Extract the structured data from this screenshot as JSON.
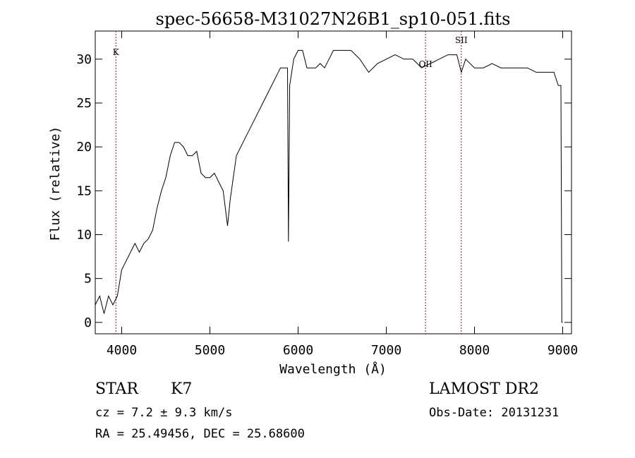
{
  "chart_data": {
    "type": "line",
    "title": "spec-56658-M31027N26B1_sp10-051.fits",
    "xlabel": "Wavelength (Å)",
    "ylabel": "Flux (relative)",
    "xlim": [
      3700,
      9100
    ],
    "ylim": [
      -1.3,
      33.2
    ],
    "x_ticks": [
      4000,
      5000,
      6000,
      7000,
      8000,
      9000
    ],
    "y_ticks": [
      0,
      5,
      10,
      15,
      20,
      25,
      30
    ],
    "grid": false,
    "line_color": "#000000",
    "marker_color": "#8b1a1a",
    "spectrum_points": [
      [
        3700,
        2
      ],
      [
        3750,
        3
      ],
      [
        3800,
        1
      ],
      [
        3850,
        3
      ],
      [
        3900,
        2
      ],
      [
        3950,
        3
      ],
      [
        4000,
        6
      ],
      [
        4050,
        7
      ],
      [
        4100,
        8
      ],
      [
        4150,
        9
      ],
      [
        4200,
        8
      ],
      [
        4250,
        9
      ],
      [
        4300,
        9.5
      ],
      [
        4350,
        10.5
      ],
      [
        4400,
        13
      ],
      [
        4450,
        15
      ],
      [
        4500,
        16.5
      ],
      [
        4550,
        19
      ],
      [
        4600,
        20.5
      ],
      [
        4650,
        20.5
      ],
      [
        4700,
        20
      ],
      [
        4750,
        19
      ],
      [
        4800,
        19
      ],
      [
        4850,
        19.5
      ],
      [
        4900,
        17
      ],
      [
        4950,
        16.5
      ],
      [
        5000,
        16.5
      ],
      [
        5050,
        17
      ],
      [
        5100,
        16
      ],
      [
        5150,
        15
      ],
      [
        5200,
        11
      ],
      [
        5230,
        14
      ],
      [
        5300,
        19
      ],
      [
        5400,
        21
      ],
      [
        5500,
        23
      ],
      [
        5600,
        25
      ],
      [
        5700,
        27
      ],
      [
        5800,
        29
      ],
      [
        5880,
        29
      ],
      [
        5890,
        9.2
      ],
      [
        5905,
        27
      ],
      [
        5950,
        30
      ],
      [
        6000,
        31
      ],
      [
        6050,
        31
      ],
      [
        6100,
        29
      ],
      [
        6150,
        29
      ],
      [
        6200,
        29
      ],
      [
        6250,
        29.5
      ],
      [
        6300,
        29
      ],
      [
        6350,
        30
      ],
      [
        6400,
        31
      ],
      [
        6500,
        31
      ],
      [
        6600,
        31
      ],
      [
        6700,
        30
      ],
      [
        6800,
        28.5
      ],
      [
        6900,
        29.5
      ],
      [
        7000,
        30
      ],
      [
        7100,
        30.5
      ],
      [
        7200,
        30
      ],
      [
        7300,
        30
      ],
      [
        7400,
        29
      ],
      [
        7500,
        29.5
      ],
      [
        7600,
        30
      ],
      [
        7700,
        30.5
      ],
      [
        7800,
        30.5
      ],
      [
        7850,
        28.5
      ],
      [
        7900,
        30
      ],
      [
        8000,
        29
      ],
      [
        8100,
        29
      ],
      [
        8200,
        29.5
      ],
      [
        8300,
        29
      ],
      [
        8400,
        29
      ],
      [
        8500,
        29
      ],
      [
        8600,
        29
      ],
      [
        8700,
        28.5
      ],
      [
        8800,
        28.5
      ],
      [
        8900,
        28.5
      ],
      [
        8950,
        27
      ],
      [
        8980,
        27
      ],
      [
        8990,
        0
      ],
      [
        9000,
        0
      ]
    ],
    "line_markers": [
      {
        "x": 3934,
        "label": "K"
      },
      {
        "x": 7445,
        "label": "OII"
      },
      {
        "x": 7850,
        "label": "SII"
      }
    ]
  },
  "annotations": {
    "class": "STAR",
    "subclass": "K7",
    "survey": "LAMOST DR2",
    "redshift": "cz = 7.2 ± 9.3 km/s",
    "obs_date": "Obs-Date: 20131231",
    "coords": "RA =  25.49456, DEC =  25.68600"
  }
}
